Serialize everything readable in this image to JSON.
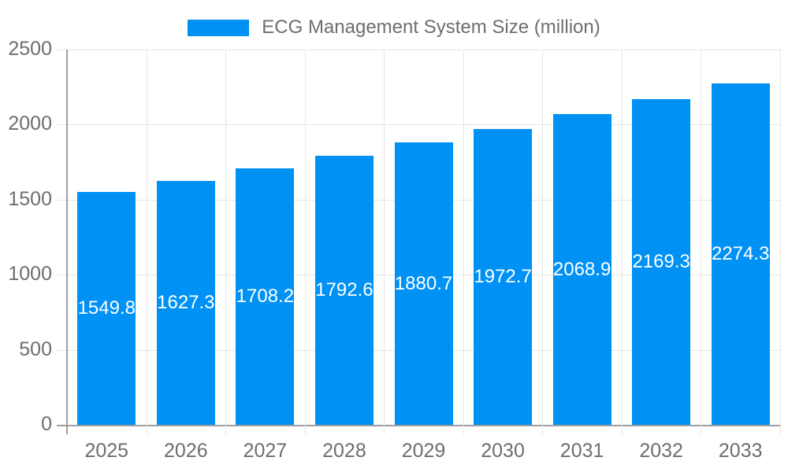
{
  "chart_data": {
    "type": "bar",
    "title": "ECG Management System Size (million)",
    "categories": [
      "2025",
      "2026",
      "2027",
      "2028",
      "2029",
      "2030",
      "2031",
      "2032",
      "2033"
    ],
    "values": [
      1549.8,
      1627.3,
      1708.2,
      1792.6,
      1880.7,
      1972.7,
      2068.9,
      2169.3,
      2274.3
    ],
    "xlabel": "",
    "ylabel": "",
    "ylim": [
      0,
      2500
    ],
    "yticks": [
      0,
      500,
      1000,
      1500,
      2000,
      2500
    ],
    "grid": true,
    "legend_position": "top-center",
    "bar_color": "#0091F5",
    "value_label_color": "#FFFFFF",
    "axis_text_color": "#6E6E6E",
    "gridline_color": "#E5E5E5",
    "axis_line_color": "#9E9E9E",
    "background_color": "#FFFFFF"
  }
}
